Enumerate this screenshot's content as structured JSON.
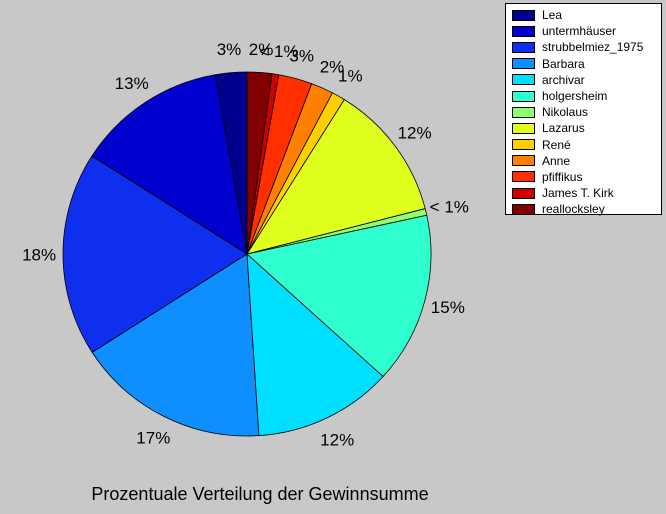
{
  "figure": {
    "background": "#c8c8c8",
    "title": "Prozentuale Verteilung der Gewinnsumme"
  },
  "chart_data": {
    "type": "pie",
    "title": "Prozentuale Verteilung der Gewinnsumme",
    "start": "top",
    "direction": "counterclockwise",
    "legend_position": "top-right",
    "slices": [
      {
        "name": "Lea",
        "value": 2.8,
        "label": "3%",
        "color": "#00008f"
      },
      {
        "name": "untermhäuser",
        "value": 13.4,
        "label": "13%",
        "color": "#0000cf"
      },
      {
        "name": "strubbelmiez_1975",
        "value": 18.4,
        "label": "18%",
        "color": "#0f2fef"
      },
      {
        "name": "Barbara",
        "value": 17.2,
        "label": "17%",
        "color": "#0f8fff"
      },
      {
        "name": "archivar",
        "value": 12.4,
        "label": "12%",
        "color": "#00dfff"
      },
      {
        "name": "holgersheim",
        "value": 15.4,
        "label": "15%",
        "color": "#2fffcf"
      },
      {
        "name": "Nikolaus",
        "value": 0.6,
        "label": "< 1%",
        "color": "#8fff6f"
      },
      {
        "name": "Lazarus",
        "value": 12.3,
        "label": "12%",
        "color": "#dfff1f"
      },
      {
        "name": "René",
        "value": 1.2,
        "label": "1%",
        "color": "#ffcf00"
      },
      {
        "name": "Anne",
        "value": 2.0,
        "label": "2%",
        "color": "#ff7f00"
      },
      {
        "name": "pfiffikus",
        "value": 3.0,
        "label": "3%",
        "color": "#ff2f00"
      },
      {
        "name": "James T. Kirk",
        "value": 0.6,
        "label": "< 1%",
        "color": "#cf0000"
      },
      {
        "name": "reallocksley",
        "value": 2.2,
        "label": "2%",
        "color": "#800000"
      }
    ]
  }
}
